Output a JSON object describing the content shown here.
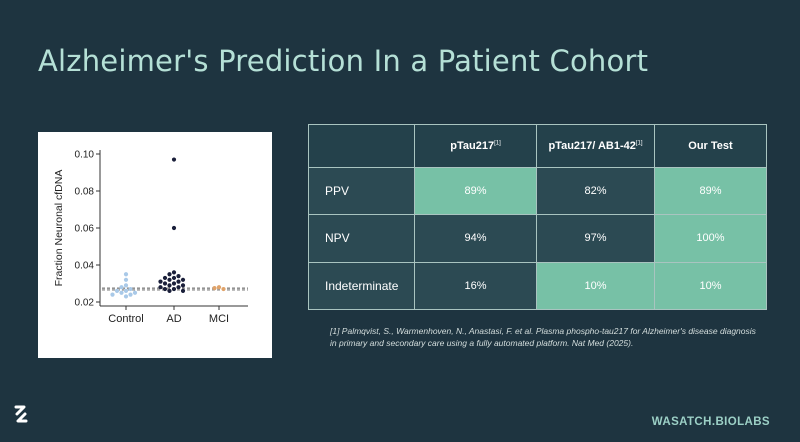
{
  "slide": {
    "title": "Alzheimer's Prediction In a Patient Cohort",
    "brand": "WASATCH.BIOLABS",
    "logo_icon": "wasatch-logo-icon"
  },
  "plot": {
    "ylabel": "Fraction Neuronal cfDNA",
    "y_ticks": [
      "0.10",
      "0.08",
      "0.06",
      "0.04",
      "0.02"
    ],
    "x_ticks": [
      "Control",
      "AD",
      "MCI"
    ]
  },
  "table": {
    "headers": [
      {
        "text": "",
        "sup": ""
      },
      {
        "text": "pTau217",
        "sup": "[1]"
      },
      {
        "text": "pTau217/ AB1-42",
        "sup": "[1]"
      },
      {
        "text": "Our Test",
        "sup": ""
      }
    ],
    "rows": [
      {
        "label": "PPV",
        "cells": [
          "89%",
          "82%",
          "89%"
        ]
      },
      {
        "label": "NPV",
        "cells": [
          "94%",
          "97%",
          "100%"
        ]
      },
      {
        "label": "Indeterminate",
        "cells": [
          "16%",
          "10%",
          "10%"
        ]
      }
    ],
    "highlight_color": "#77c1a6"
  },
  "reference": {
    "text": "[1] Palmqvist, S., Warmenhoven, N., Anastasi, F. et al. Plasma phospho-tau217 for Alzheimer's disease diagnosis in primary and secondary care using a fully automated platform. Nat Med (2025)."
  },
  "chart_data": {
    "type": "scatter",
    "categories": [
      "Control",
      "AD",
      "MCI"
    ],
    "ylabel": "Fraction Neuronal cfDNA",
    "ylim": [
      0.02,
      0.1
    ],
    "threshold_lines": [
      0.0265,
      0.0275
    ],
    "series": [
      {
        "category": "Control",
        "color": "#a9c9e8",
        "values": [
          0.035,
          0.032,
          0.029,
          0.028,
          0.027,
          0.026,
          0.026,
          0.025,
          0.025,
          0.024,
          0.024,
          0.023
        ]
      },
      {
        "category": "AD",
        "color": "#1a1f3a",
        "values": [
          0.097,
          0.06,
          0.036,
          0.035,
          0.034,
          0.033,
          0.033,
          0.032,
          0.032,
          0.031,
          0.031,
          0.03,
          0.03,
          0.029,
          0.029,
          0.028,
          0.028,
          0.027,
          0.027,
          0.026,
          0.026
        ]
      },
      {
        "category": "MCI",
        "color": "#e0a36a",
        "values": [
          0.028,
          0.0275,
          0.027
        ]
      }
    ]
  }
}
